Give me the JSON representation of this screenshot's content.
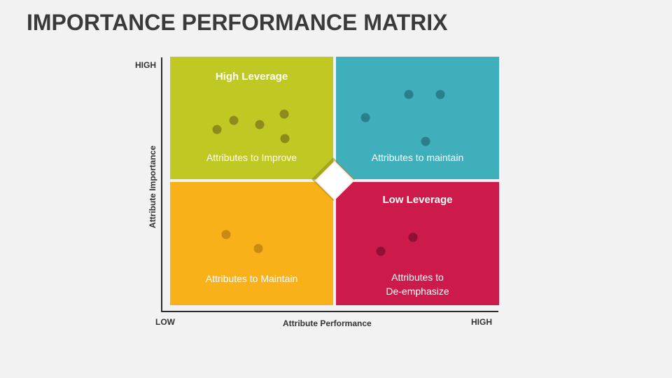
{
  "title": "IMPORTANCE PERFORMANCE MATRIX",
  "axes": {
    "y_high": "HIGH",
    "y_label": "Attribute Importance",
    "x_low": "LOW",
    "x_label": "Attribute Performance",
    "x_high": "HIGH"
  },
  "quadrants": {
    "top_left": {
      "heading": "High Leverage",
      "text": "Attributes to Improve",
      "color": "#c0c923",
      "dot_color": "#8f8a1e"
    },
    "top_right": {
      "heading": "",
      "text": "Attributes to maintain",
      "color": "#3fb0bb",
      "dot_color": "#2a7f8c"
    },
    "bottom_left": {
      "heading": "",
      "text": "Attributes to Maintain",
      "color": "#f8b119",
      "dot_color": "#c98a14"
    },
    "bottom_right": {
      "heading": "Low Leverage",
      "text_line1": "Attributes to",
      "text_line2": "De-emphasize",
      "color": "#cc1a4a",
      "dot_color": "#8e1034"
    }
  },
  "colors": {
    "background": "#f2f2f2",
    "title": "#3a3a3a",
    "axis": "#2b2b2b"
  }
}
